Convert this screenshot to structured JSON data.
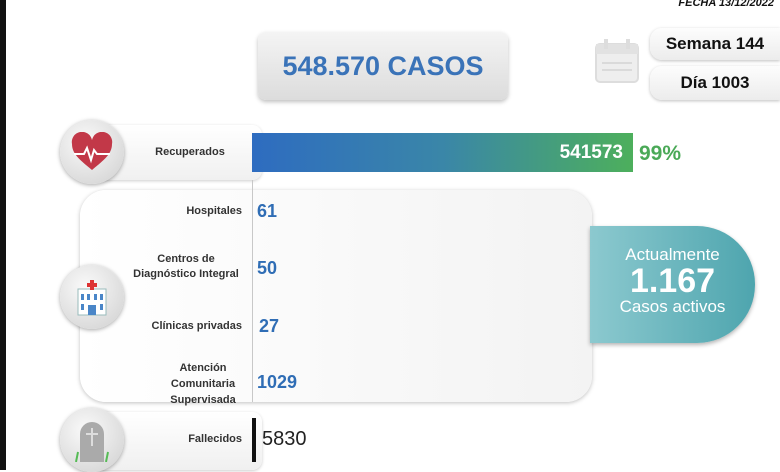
{
  "header": {
    "fecha": "FECHA 13/12/2022",
    "total_casos": "548.570 CASOS",
    "semana": "Semana 144",
    "dia": "Día 1003"
  },
  "recuperados": {
    "label": "Recuperados",
    "value": "541573",
    "percent": "99%",
    "fraction": 0.99,
    "icon": "heart-pulse-icon"
  },
  "activos": {
    "icon": "hospital-icon",
    "items": [
      {
        "label": "Hospitales",
        "value": "61"
      },
      {
        "label": "Centros de Diagnóstico Integral",
        "value": "50"
      },
      {
        "label": "Clínicas privadas",
        "value": "27"
      },
      {
        "label": "Atención Comunitaria Supervisada",
        "value": "1029"
      }
    ]
  },
  "resumen": {
    "line1": "Actualmente",
    "value": "1.167",
    "line2": "Casos activos"
  },
  "fallecidos": {
    "label": "Fallecidos",
    "value": "5830",
    "icon": "tombstone-icon"
  },
  "colors": {
    "blue": "#2f6db5",
    "green": "#4aa957",
    "teal": "#4ea5ae"
  }
}
